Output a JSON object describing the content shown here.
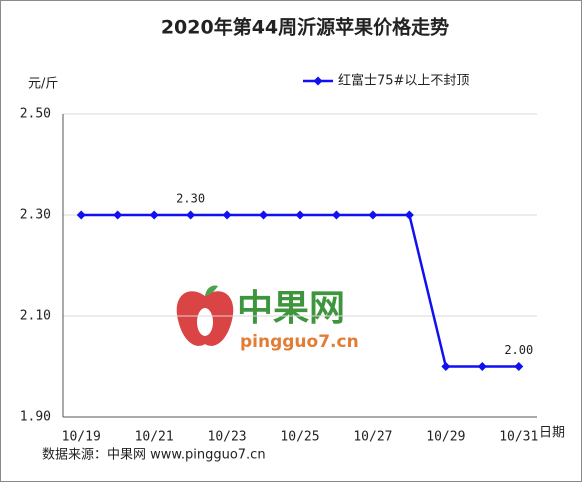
{
  "chart_data": {
    "type": "line",
    "title": "2020年第44周沂源苹果价格走势",
    "y_unit": "元/斤",
    "x_unit": "日期",
    "source": "数据来源：中果网 www.pingguo7.cn",
    "watermark": {
      "brand": "中果网",
      "site": "pingguo7.cn"
    },
    "categories": [
      "10/19",
      null,
      "10/21",
      null,
      "10/23",
      null,
      "10/25",
      null,
      "10/27",
      null,
      "10/29",
      null,
      "10/31"
    ],
    "series": [
      {
        "name": "红富士75#以上不封顶",
        "color": "#1010f0",
        "values": [
          2.3,
          2.3,
          2.3,
          2.3,
          2.3,
          2.3,
          2.3,
          2.3,
          2.3,
          2.3,
          2.0,
          2.0,
          2.0
        ],
        "value_labels": [
          null,
          null,
          null,
          "2.30",
          null,
          null,
          null,
          null,
          null,
          null,
          null,
          null,
          "2.00"
        ]
      }
    ],
    "ylim": [
      1.9,
      2.5
    ],
    "yticks": [
      {
        "value": 1.9,
        "label": "1.90"
      },
      {
        "value": 2.1,
        "label": "2.10"
      },
      {
        "value": 2.3,
        "label": "2.30"
      },
      {
        "value": 2.5,
        "label": "2.50"
      }
    ],
    "grid": true
  }
}
